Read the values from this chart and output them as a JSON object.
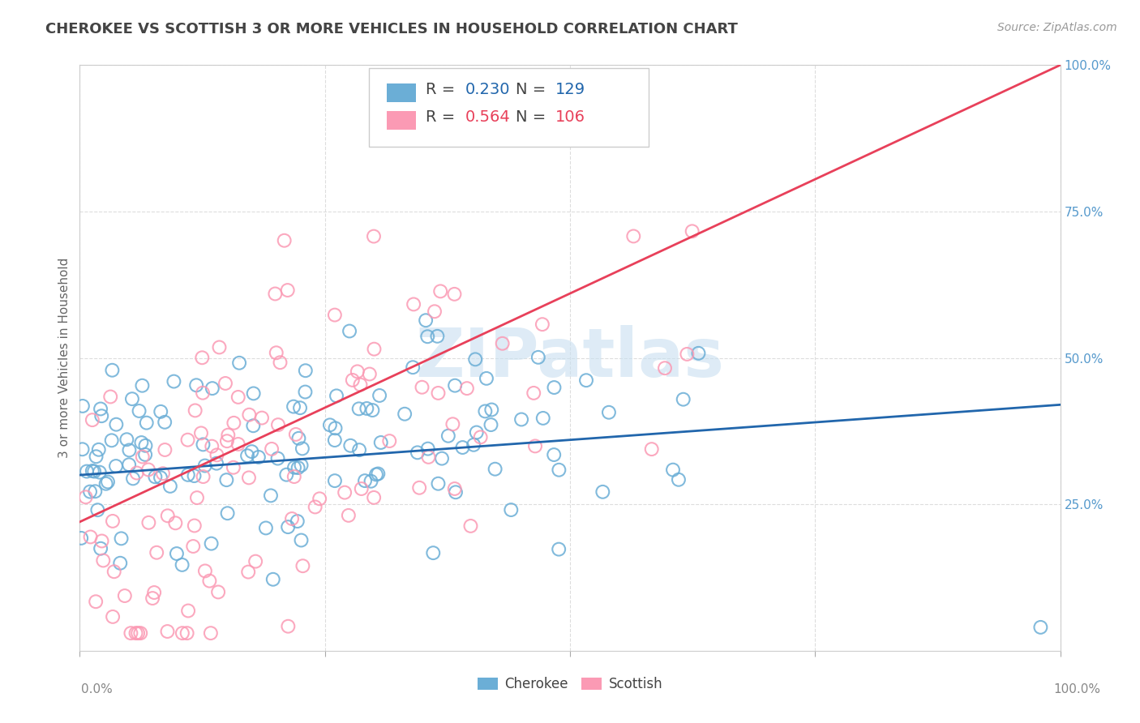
{
  "title": "CHEROKEE VS SCOTTISH 3 OR MORE VEHICLES IN HOUSEHOLD CORRELATION CHART",
  "source": "Source: ZipAtlas.com",
  "ylabel": "3 or more Vehicles in Household",
  "xlim": [
    0.0,
    1.0
  ],
  "ylim": [
    0.0,
    1.0
  ],
  "ytick_positions": [
    0.25,
    0.5,
    0.75,
    1.0
  ],
  "ytick_labels": [
    "25.0%",
    "50.0%",
    "75.0%",
    "100.0%"
  ],
  "xtick_positions": [
    0.0,
    1.0
  ],
  "xtick_labels": [
    "0.0%",
    "100.0%"
  ],
  "cherokee_color": "#6baed6",
  "scottish_color": "#fb9ab4",
  "cherokee_line_color": "#2166ac",
  "scottish_line_color": "#e8405a",
  "cherokee_R": 0.23,
  "cherokee_N": 129,
  "scottish_R": 0.564,
  "scottish_N": 106,
  "background_color": "#ffffff",
  "title_color": "#444444",
  "title_fontsize": 13,
  "legend_fontsize": 14,
  "axis_label_color": "#666666",
  "tick_label_color": "#5599cc",
  "grid_color": "#dddddd",
  "watermark_text": "ZIPatlas",
  "watermark_color": "#c8dff0",
  "watermark_fontsize": 60
}
